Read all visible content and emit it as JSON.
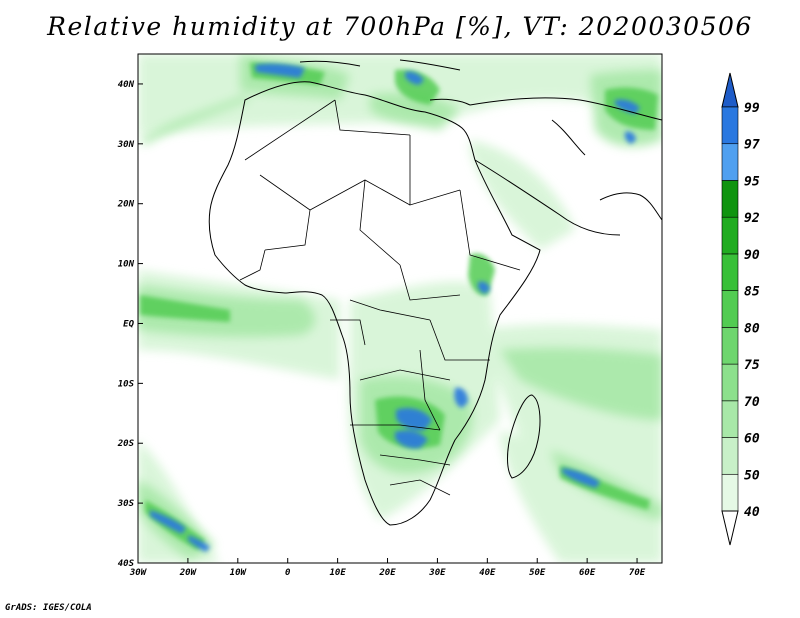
{
  "title": "Relative humidity at 700hPa [%], VT: 2020030506",
  "credit": "GrADS: IGES/COLA",
  "map": {
    "lon_range": [
      -30,
      75
    ],
    "lat_range": [
      -40,
      45
    ],
    "x_ticks": [
      {
        "value": -30,
        "label": "30W"
      },
      {
        "value": -20,
        "label": "20W"
      },
      {
        "value": -10,
        "label": "10W"
      },
      {
        "value": 0,
        "label": "0"
      },
      {
        "value": 10,
        "label": "10E"
      },
      {
        "value": 20,
        "label": "20E"
      },
      {
        "value": 30,
        "label": "30E"
      },
      {
        "value": 40,
        "label": "40E"
      },
      {
        "value": 50,
        "label": "50E"
      },
      {
        "value": 60,
        "label": "60E"
      },
      {
        "value": 70,
        "label": "70E"
      }
    ],
    "y_ticks": [
      {
        "value": 40,
        "label": "40N"
      },
      {
        "value": 30,
        "label": "30N"
      },
      {
        "value": 20,
        "label": "20N"
      },
      {
        "value": 10,
        "label": "10N"
      },
      {
        "value": 0,
        "label": "EQ"
      },
      {
        "value": -10,
        "label": "10S"
      },
      {
        "value": -20,
        "label": "20S"
      },
      {
        "value": -30,
        "label": "30S"
      },
      {
        "value": -40,
        "label": "40S"
      }
    ]
  },
  "colorbar": {
    "levels": [
      {
        "label": "40",
        "color": "#e6f9e6"
      },
      {
        "label": "50",
        "color": "#c8f0c8"
      },
      {
        "label": "60",
        "color": "#a8e8a8"
      },
      {
        "label": "70",
        "color": "#8ce08c"
      },
      {
        "label": "75",
        "color": "#6ed66e"
      },
      {
        "label": "80",
        "color": "#52cc52"
      },
      {
        "label": "85",
        "color": "#38c038"
      },
      {
        "label": "90",
        "color": "#20ac20"
      },
      {
        "label": "92",
        "color": "#109410"
      },
      {
        "label": "95",
        "color": "#50a0f0"
      },
      {
        "label": "97",
        "color": "#2a78e0"
      },
      {
        "label": "99",
        "color": "#1e5cc8"
      }
    ],
    "below_color": "#ffffff",
    "above_color": "#1e5cc8"
  }
}
